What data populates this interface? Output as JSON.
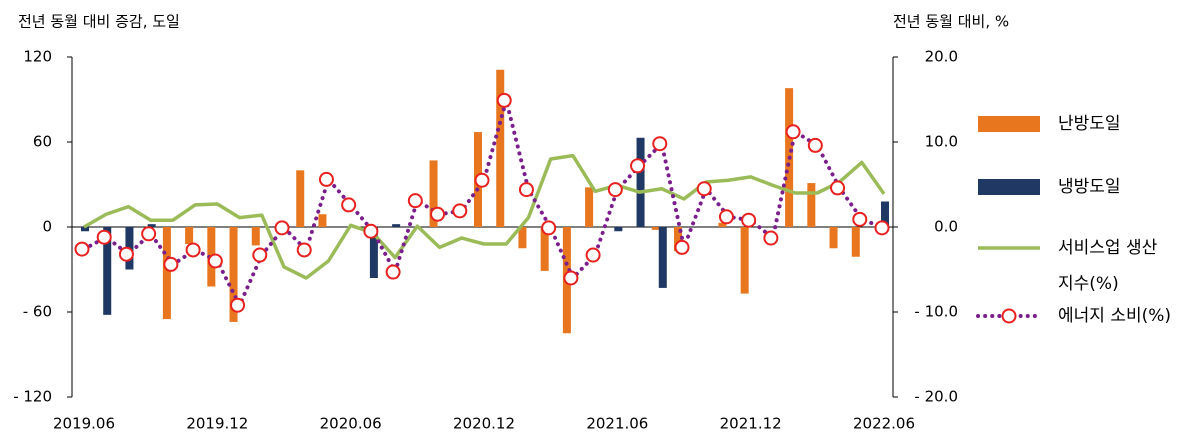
{
  "chart_data": {
    "type": "combo",
    "y_label": "전년 동월 대비 증감, 도일",
    "y2_label": "전년 동월 대비, %",
    "categories": [
      "2019.06",
      null,
      null,
      null,
      null,
      null,
      "2019.12",
      null,
      null,
      null,
      null,
      null,
      "2020.06",
      null,
      null,
      null,
      null,
      null,
      "2020.12",
      null,
      null,
      null,
      null,
      null,
      "2021.06",
      null,
      null,
      null,
      null,
      null,
      "2021.12",
      null,
      null,
      null,
      null,
      null,
      "2022.06"
    ],
    "ylim": [
      -120,
      120
    ],
    "yticks": [
      120,
      60,
      0,
      {
        "value": -60,
        "label": "- 60"
      },
      {
        "value": -120,
        "label": "- 120"
      }
    ],
    "y2lim": [
      -20,
      20
    ],
    "y2ticks": [
      {
        "value": 20,
        "label": "20.0"
      },
      {
        "value": 10,
        "label": "10.0"
      },
      {
        "value": 0,
        "label": "0.0"
      },
      {
        "value": -10,
        "label": "- 10.0"
      },
      {
        "value": -20,
        "label": "- 20.0"
      }
    ],
    "series": [
      {
        "name": "난방도일",
        "type": "bar",
        "color": "#e8761e",
        "values": [
          0,
          0,
          0,
          0,
          -65,
          -12,
          -42,
          -67,
          -13,
          0,
          40,
          9,
          0,
          0,
          0,
          0,
          47,
          0,
          67,
          111,
          -15,
          -31,
          -75,
          28,
          0,
          0,
          -2,
          -17,
          0,
          3,
          -47,
          0,
          98,
          31,
          -15,
          -21,
          0
        ]
      },
      {
        "name": "냉방도일",
        "type": "bar",
        "color": "#1f3864",
        "values": [
          -3,
          -62,
          -30,
          2,
          0,
          0,
          0,
          0,
          0,
          0,
          0,
          0,
          0,
          -36,
          2,
          0,
          0,
          0,
          0,
          0,
          0,
          0,
          0,
          0,
          -3,
          63,
          -43,
          0,
          0,
          0,
          0,
          0,
          0,
          0,
          0,
          0,
          18
        ]
      },
      {
        "name": "서비스업 생산지수(%)",
        "type": "line",
        "axis": "y2",
        "color": "#9bbb59",
        "values": [
          0,
          1.5,
          2.4,
          0.8,
          0.8,
          2.6,
          2.7,
          1.1,
          1.4,
          -4.7,
          -6.0,
          -4.0,
          0.2,
          -0.7,
          -3.6,
          0.1,
          -2.4,
          -1.3,
          -2.0,
          -2.0,
          1.1,
          8.0,
          8.4,
          4.2,
          4.9,
          4.1,
          4.5,
          3.3,
          5.3,
          5.5,
          5.9,
          4.9,
          4.0,
          4.0,
          5.3,
          7.6,
          3.9
        ]
      },
      {
        "name": "에너지 소비(%)",
        "type": "dotted",
        "axis": "y2",
        "color": "#7b1f8c",
        "marker_color": "#e8211f",
        "values": [
          -2.6,
          -1.2,
          -3.2,
          -0.8,
          -4.4,
          -2.7,
          -4.0,
          -9.2,
          -3.3,
          -0.1,
          -2.7,
          5.6,
          2.6,
          -0.5,
          -5.3,
          3.1,
          1.5,
          1.9,
          5.5,
          14.9,
          4.4,
          -0.1,
          -6.0,
          -3.3,
          4.4,
          7.2,
          9.8,
          -2.4,
          4.5,
          1.2,
          0.8,
          -1.3,
          11.2,
          9.6,
          4.6,
          0.9,
          -0.1
        ]
      }
    ]
  }
}
